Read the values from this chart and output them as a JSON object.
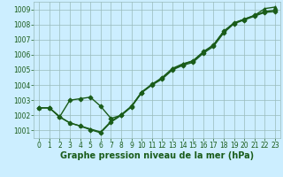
{
  "xlabel": "Graphe pression niveau de la mer (hPa)",
  "bg_color": "#cceeff",
  "grid_color": "#99bbbb",
  "line_color": "#1a5c1a",
  "xlim": [
    -0.5,
    23.5
  ],
  "ylim": [
    1000.5,
    1009.5
  ],
  "yticks": [
    1001,
    1002,
    1003,
    1004,
    1005,
    1006,
    1007,
    1008,
    1009
  ],
  "xticks": [
    0,
    1,
    2,
    3,
    4,
    5,
    6,
    7,
    8,
    9,
    10,
    11,
    12,
    13,
    14,
    15,
    16,
    17,
    18,
    19,
    20,
    21,
    22,
    23
  ],
  "series": [
    {
      "x": [
        0,
        1,
        2,
        3,
        4,
        5,
        6,
        7,
        8,
        9,
        10,
        11,
        12,
        13,
        14,
        15,
        16,
        17,
        18,
        19,
        20,
        21,
        22,
        23
      ],
      "y": [
        1002.5,
        1002.5,
        1001.9,
        1001.5,
        1001.3,
        1001.05,
        1000.85,
        1001.55,
        1002.0,
        1002.55,
        1003.5,
        1004.0,
        1004.4,
        1005.0,
        1005.3,
        1005.5,
        1006.1,
        1006.55,
        1007.45,
        1008.05,
        1008.3,
        1008.55,
        1008.8,
        1008.85
      ],
      "marker": "D",
      "markersize": 2.5,
      "linewidth": 1.0
    },
    {
      "x": [
        0,
        1,
        2,
        3,
        4,
        5,
        6,
        7,
        8,
        9,
        10,
        11,
        12,
        13,
        14,
        15,
        16,
        17,
        18,
        19,
        20,
        21,
        22,
        23
      ],
      "y": [
        1002.5,
        1002.5,
        1001.9,
        1003.0,
        1003.1,
        1003.2,
        1002.6,
        1001.8,
        1002.0,
        1002.6,
        1003.5,
        1004.05,
        1004.45,
        1005.05,
        1005.35,
        1005.6,
        1006.2,
        1006.65,
        1007.55,
        1008.1,
        1008.35,
        1008.6,
        1008.85,
        1008.95
      ],
      "marker": "D",
      "markersize": 2.5,
      "linewidth": 1.0
    },
    {
      "x": [
        0,
        1,
        2,
        3,
        4,
        5,
        6,
        7,
        8,
        9,
        10,
        11,
        12,
        13,
        14,
        15,
        16,
        17,
        18,
        19,
        20,
        21,
        22,
        23
      ],
      "y": [
        1002.5,
        1002.5,
        1001.9,
        1001.5,
        1001.3,
        1001.1,
        1000.9,
        1001.6,
        1002.05,
        1002.6,
        1003.55,
        1004.05,
        1004.5,
        1005.1,
        1005.4,
        1005.6,
        1006.15,
        1006.65,
        1007.55,
        1008.1,
        1008.35,
        1008.6,
        1009.05,
        1009.15
      ],
      "marker": "^",
      "markersize": 2.5,
      "linewidth": 1.0
    }
  ],
  "xlabel_fontsize": 7,
  "tick_fontsize": 5.5,
  "xlabel_color": "#1a5c1a",
  "xlabel_bold": true
}
